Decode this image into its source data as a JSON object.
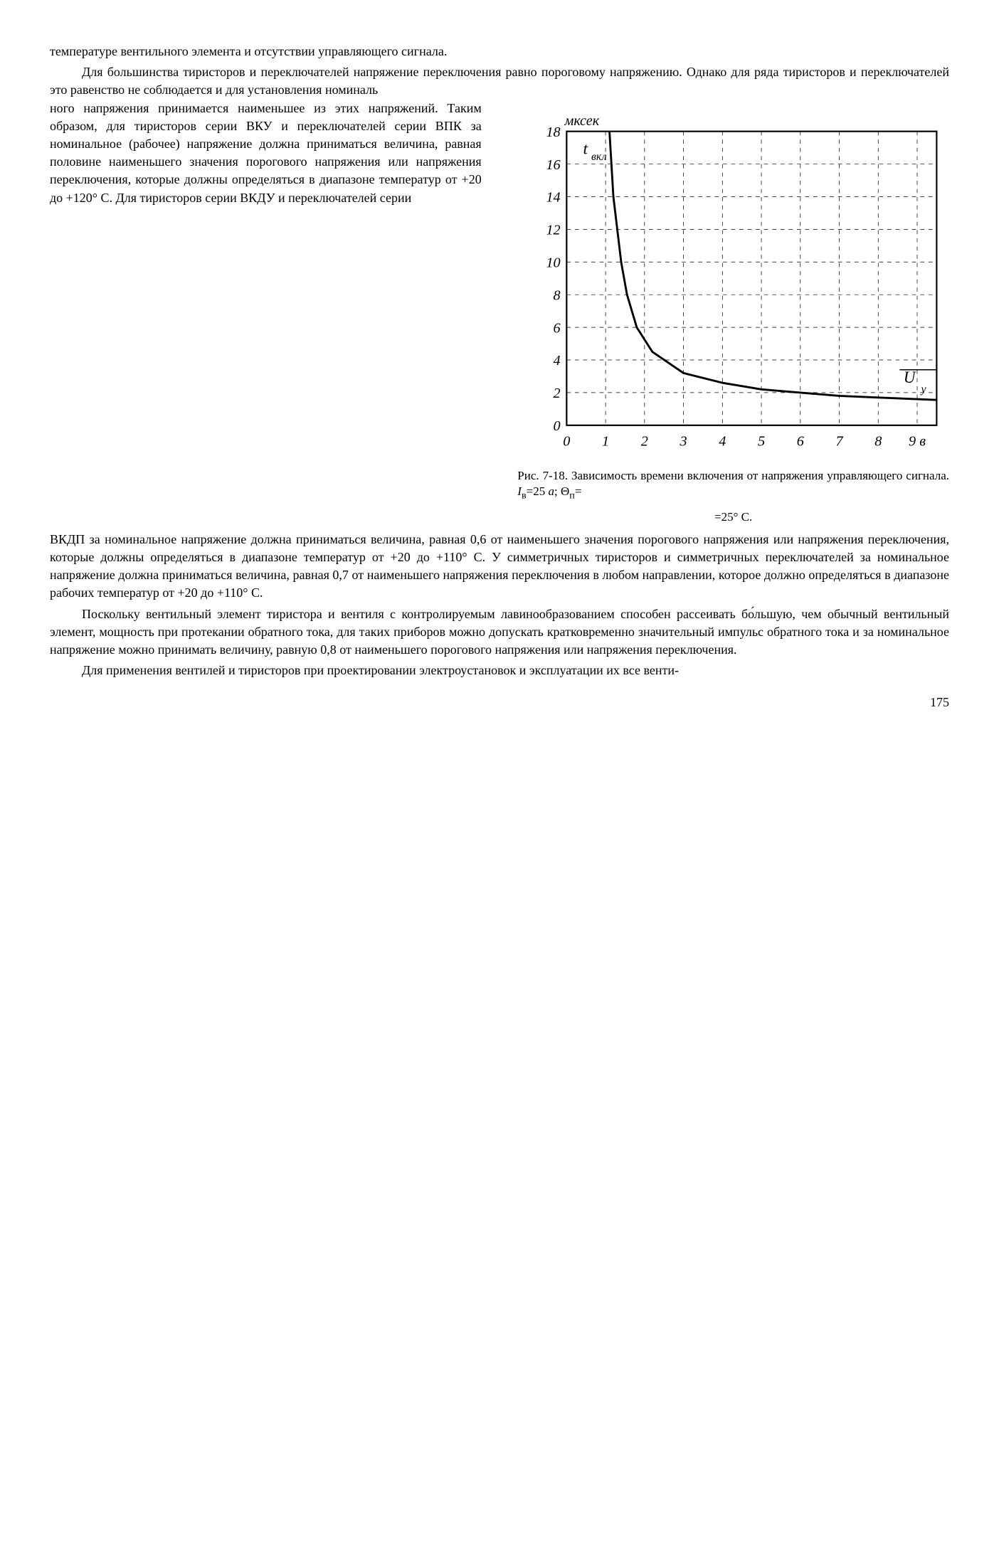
{
  "para1": "температуре вентильного элемента и отсутствии управляющего сигнала.",
  "para2": "Для большинства тиристоров и переключателей напряжение переключения равно пороговому напряжению. Однако для ряда тиристоров и переключателей это равенство не соблюдается и для установления номиналь",
  "para3_left": "ного напряжения принимается наименьшее из этих напряжений. Таким образом, для тиристоров серии ВКУ и переключателей серии ВПК за номинальное (рабочее) напряжение должна приниматься величина, равная половине наименьшего значения порогового напряжения или напряжения переключения, которые должны определяться в диапазоне температур от +20 до +120° С. Для тиристоров серии ВКДУ и переключателей серии",
  "para4": "ВКДП за номинальное напряжение должна приниматься величина, равная 0,6 от наименьшего значения порогового напряжения или напряжения переключения, которые должны определяться в диапазоне температур от +20 до +110° С. У симметричных тиристоров и симметричных переключателей за номинальное напряжение должна приниматься величина, равная 0,7 от наименьшего напряжения переключения в любом направлении, которое должно определяться в диапазоне рабочих температур от +20 до +110° С.",
  "para5": "Поскольку вентильный элемент тиристора и вентиля с контролируемым лавинообразованием способен рассеивать бо́льшую, чем обычный вентильный элемент, мощность при протекании обратного тока, для таких приборов можно допускать кратковременно значительный импульс обратного тока и за номинальное напряжение можно принимать величину, равную 0,8 от наименьшего порогового напряжения или напряжения переключения.",
  "para6": "Для применения вентилей и тиристоров при проектировании электроустановок и эксплуатации их все венти-",
  "caption_line1": "Рис. 7-18. Зависимость времени включения от напряжения управляющего сигнала. ",
  "caption_Iv": "I",
  "caption_v_sub": "в",
  "caption_eq1": "=25 ",
  "caption_a": "а",
  "caption_sep": "; Θ",
  "caption_p_sub": "п",
  "caption_eq2": "=",
  "caption_line2": "=25° С.",
  "page_number": "175",
  "chart": {
    "type": "line",
    "ylabel": "мксек",
    "inset_label": "t",
    "inset_sub": "вкл",
    "xlabel_right": "U",
    "xlabel_sub": "у",
    "xlim": [
      0,
      9.5
    ],
    "ylim": [
      0,
      18
    ],
    "xtick_labels": [
      "0",
      "1",
      "2",
      "3",
      "4",
      "5",
      "6",
      "7",
      "8",
      "9 в"
    ],
    "ytick_values": [
      0,
      2,
      4,
      6,
      8,
      10,
      12,
      14,
      16,
      18
    ],
    "ytick_labels": [
      "0",
      "2",
      "4",
      "6",
      "8",
      "10",
      "12",
      "14",
      "16",
      "18"
    ],
    "curve_points": [
      [
        1.1,
        18
      ],
      [
        1.15,
        16
      ],
      [
        1.2,
        14
      ],
      [
        1.3,
        12
      ],
      [
        1.4,
        10
      ],
      [
        1.55,
        8
      ],
      [
        1.8,
        6
      ],
      [
        2.2,
        4.5
      ],
      [
        3.0,
        3.2
      ],
      [
        4.0,
        2.6
      ],
      [
        5.0,
        2.2
      ],
      [
        6.0,
        2.0
      ],
      [
        7.0,
        1.8
      ],
      [
        8.0,
        1.7
      ],
      [
        9.0,
        1.6
      ],
      [
        9.5,
        1.55
      ]
    ],
    "line_color": "#000000",
    "line_width": 2,
    "grid_color": "#000000",
    "grid_width": 0.5,
    "frame_width": 1.5,
    "background_color": "#ffffff",
    "tick_fontsize": 14,
    "label_fontsize": 14
  }
}
